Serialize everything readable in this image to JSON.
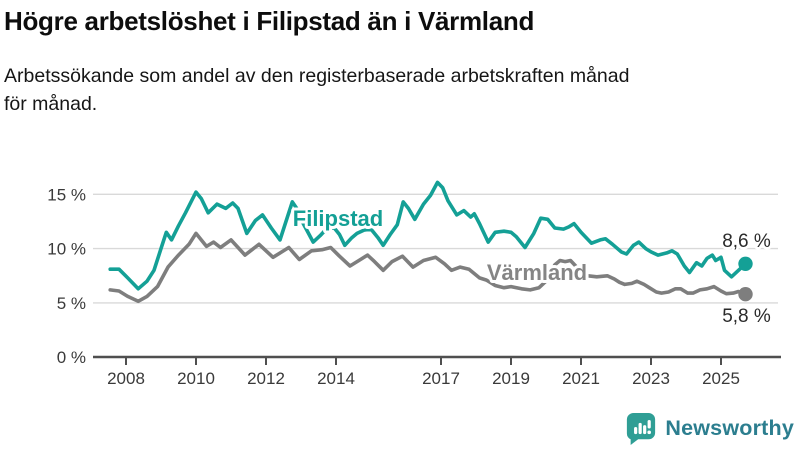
{
  "title": "Högre arbetslöshet i Filipstad än i Värmland",
  "subtitle": {
    "line1": "Arbetssökande som andel av den registerbaserade arbetskraften månad",
    "line2": "för månad."
  },
  "logo": {
    "text": "Newsworthy",
    "icon": "bar-chart-speech-bubble-icon"
  },
  "colors": {
    "filipstad": "#14a096",
    "varmland": "#7e7e7e",
    "varmland_label": "#858585",
    "grid": "#d9d9d9",
    "axis": "#4f4f4f",
    "tick_text": "#3a3a3a",
    "end_label_text": "#2a2a2a",
    "logo_icon": "#2f9e95",
    "logo_text": "#2c7e8f"
  },
  "chart_data": {
    "type": "line",
    "title": "Högre arbetslöshet i Filipstad än i Värmland",
    "subtitle": "Arbetssökande som andel av den registerbaserade arbetskraften månad för månad.",
    "unit": "%",
    "grid": true,
    "legend": "inline-labels-on-lines",
    "x_axis": {
      "ticks": [
        2008,
        2010,
        2012,
        2014,
        2017,
        2019,
        2021,
        2023,
        2025
      ],
      "tick_labels": [
        "2008",
        "2010",
        "2012",
        "2014",
        "2017",
        "2019",
        "2021",
        "2023",
        "2025"
      ],
      "range_decimal_years": [
        2007.5,
        2025.75
      ]
    },
    "y_axis": {
      "ticks": [
        0,
        5,
        10,
        15
      ],
      "tick_labels": [
        "0 %",
        "5 %",
        "10 %",
        "15 %"
      ],
      "ylim": [
        0,
        16.5
      ]
    },
    "series": [
      {
        "name": "Värmland",
        "color": "#7e7e7e",
        "end_label": "5,8 %",
        "end_value": 5.8,
        "points": [
          [
            2007.55,
            6.2
          ],
          [
            2007.8,
            6.1
          ],
          [
            2008.05,
            5.6
          ],
          [
            2008.35,
            5.15
          ],
          [
            2008.6,
            5.6
          ],
          [
            2008.9,
            6.5
          ],
          [
            2009.2,
            8.3
          ],
          [
            2009.5,
            9.4
          ],
          [
            2009.8,
            10.4
          ],
          [
            2010.0,
            11.4
          ],
          [
            2010.3,
            10.2
          ],
          [
            2010.5,
            10.6
          ],
          [
            2010.7,
            10.1
          ],
          [
            2011.0,
            10.8
          ],
          [
            2011.4,
            9.4
          ],
          [
            2011.6,
            9.9
          ],
          [
            2011.8,
            10.4
          ],
          [
            2012.2,
            9.2
          ],
          [
            2012.45,
            9.7
          ],
          [
            2012.65,
            10.1
          ],
          [
            2012.95,
            9.0
          ],
          [
            2013.3,
            9.8
          ],
          [
            2013.6,
            9.9
          ],
          [
            2013.85,
            10.1
          ],
          [
            2014.1,
            9.3
          ],
          [
            2014.4,
            8.4
          ],
          [
            2014.7,
            9.0
          ],
          [
            2014.9,
            9.4
          ],
          [
            2015.1,
            8.8
          ],
          [
            2015.35,
            8.0
          ],
          [
            2015.6,
            8.8
          ],
          [
            2015.9,
            9.3
          ],
          [
            2016.2,
            8.3
          ],
          [
            2016.5,
            8.9
          ],
          [
            2016.85,
            9.2
          ],
          [
            2017.1,
            8.6
          ],
          [
            2017.3,
            8.0
          ],
          [
            2017.55,
            8.3
          ],
          [
            2017.8,
            8.1
          ],
          [
            2018.1,
            7.3
          ],
          [
            2018.3,
            7.1
          ],
          [
            2018.55,
            6.6
          ],
          [
            2018.8,
            6.4
          ],
          [
            2019.0,
            6.5
          ],
          [
            2019.3,
            6.3
          ],
          [
            2019.55,
            6.2
          ],
          [
            2019.8,
            6.4
          ],
          [
            2020.0,
            7.0
          ],
          [
            2020.25,
            8.5
          ],
          [
            2020.4,
            8.9
          ],
          [
            2020.55,
            8.8
          ],
          [
            2020.7,
            8.9
          ],
          [
            2020.85,
            8.4
          ],
          [
            2021.0,
            7.8
          ],
          [
            2021.2,
            7.5
          ],
          [
            2021.45,
            7.4
          ],
          [
            2021.75,
            7.5
          ],
          [
            2021.95,
            7.2
          ],
          [
            2022.1,
            6.9
          ],
          [
            2022.25,
            6.7
          ],
          [
            2022.45,
            6.8
          ],
          [
            2022.6,
            7.0
          ],
          [
            2022.8,
            6.7
          ],
          [
            2022.95,
            6.4
          ],
          [
            2023.15,
            6.0
          ],
          [
            2023.3,
            5.9
          ],
          [
            2023.5,
            6.0
          ],
          [
            2023.7,
            6.3
          ],
          [
            2023.85,
            6.3
          ],
          [
            2024.05,
            5.9
          ],
          [
            2024.2,
            5.9
          ],
          [
            2024.4,
            6.2
          ],
          [
            2024.6,
            6.3
          ],
          [
            2024.8,
            6.5
          ],
          [
            2025.0,
            6.1
          ],
          [
            2025.15,
            5.85
          ],
          [
            2025.35,
            5.9
          ],
          [
            2025.5,
            6.05
          ],
          [
            2025.7,
            5.8
          ]
        ]
      },
      {
        "name": "Filipstad",
        "color": "#14a096",
        "end_label": "8,6 %",
        "end_value": 8.6,
        "points": [
          [
            2007.55,
            8.1
          ],
          [
            2007.8,
            8.1
          ],
          [
            2008.05,
            7.3
          ],
          [
            2008.35,
            6.3
          ],
          [
            2008.6,
            7.0
          ],
          [
            2008.8,
            8.0
          ],
          [
            2009.0,
            10.0
          ],
          [
            2009.15,
            11.5
          ],
          [
            2009.3,
            10.8
          ],
          [
            2009.5,
            12.1
          ],
          [
            2009.7,
            13.3
          ],
          [
            2010.0,
            15.2
          ],
          [
            2010.15,
            14.6
          ],
          [
            2010.35,
            13.3
          ],
          [
            2010.6,
            14.1
          ],
          [
            2010.85,
            13.7
          ],
          [
            2011.05,
            14.2
          ],
          [
            2011.2,
            13.7
          ],
          [
            2011.45,
            11.4
          ],
          [
            2011.7,
            12.6
          ],
          [
            2011.9,
            13.1
          ],
          [
            2012.15,
            11.9
          ],
          [
            2012.4,
            10.8
          ],
          [
            2012.75,
            14.3
          ],
          [
            2012.9,
            13.6
          ],
          [
            2013.05,
            12.4
          ],
          [
            2013.35,
            10.6
          ],
          [
            2013.55,
            11.2
          ],
          [
            2013.75,
            11.9
          ],
          [
            2013.95,
            11.9
          ],
          [
            2014.1,
            11.3
          ],
          [
            2014.25,
            10.3
          ],
          [
            2014.45,
            11.0
          ],
          [
            2014.6,
            11.4
          ],
          [
            2014.8,
            11.7
          ],
          [
            2015.0,
            11.8
          ],
          [
            2015.2,
            11.0
          ],
          [
            2015.35,
            10.3
          ],
          [
            2015.55,
            11.3
          ],
          [
            2015.75,
            12.2
          ],
          [
            2015.92,
            14.3
          ],
          [
            2016.07,
            13.7
          ],
          [
            2016.25,
            12.7
          ],
          [
            2016.5,
            14.1
          ],
          [
            2016.7,
            14.9
          ],
          [
            2016.9,
            16.1
          ],
          [
            2017.05,
            15.6
          ],
          [
            2017.2,
            14.4
          ],
          [
            2017.45,
            13.1
          ],
          [
            2017.65,
            13.5
          ],
          [
            2017.85,
            12.9
          ],
          [
            2017.95,
            13.2
          ],
          [
            2018.1,
            12.3
          ],
          [
            2018.35,
            10.6
          ],
          [
            2018.55,
            11.5
          ],
          [
            2018.8,
            11.6
          ],
          [
            2019.0,
            11.5
          ],
          [
            2019.15,
            11.1
          ],
          [
            2019.4,
            10.1
          ],
          [
            2019.65,
            11.4
          ],
          [
            2019.85,
            12.8
          ],
          [
            2020.05,
            12.7
          ],
          [
            2020.25,
            11.9
          ],
          [
            2020.5,
            11.8
          ],
          [
            2020.65,
            12.0
          ],
          [
            2020.8,
            12.3
          ],
          [
            2021.0,
            11.5
          ],
          [
            2021.3,
            10.5
          ],
          [
            2021.55,
            10.8
          ],
          [
            2021.7,
            10.9
          ],
          [
            2021.9,
            10.4
          ],
          [
            2022.15,
            9.7
          ],
          [
            2022.3,
            9.5
          ],
          [
            2022.5,
            10.3
          ],
          [
            2022.65,
            10.6
          ],
          [
            2022.85,
            10.0
          ],
          [
            2023.0,
            9.7
          ],
          [
            2023.2,
            9.4
          ],
          [
            2023.45,
            9.6
          ],
          [
            2023.6,
            9.8
          ],
          [
            2023.75,
            9.5
          ],
          [
            2023.95,
            8.4
          ],
          [
            2024.1,
            7.8
          ],
          [
            2024.3,
            8.7
          ],
          [
            2024.45,
            8.4
          ],
          [
            2024.6,
            9.1
          ],
          [
            2024.75,
            9.4
          ],
          [
            2024.85,
            8.9
          ],
          [
            2025.0,
            9.2
          ],
          [
            2025.1,
            8.0
          ],
          [
            2025.3,
            7.4
          ],
          [
            2025.5,
            8.0
          ],
          [
            2025.7,
            8.6
          ]
        ]
      }
    ]
  }
}
